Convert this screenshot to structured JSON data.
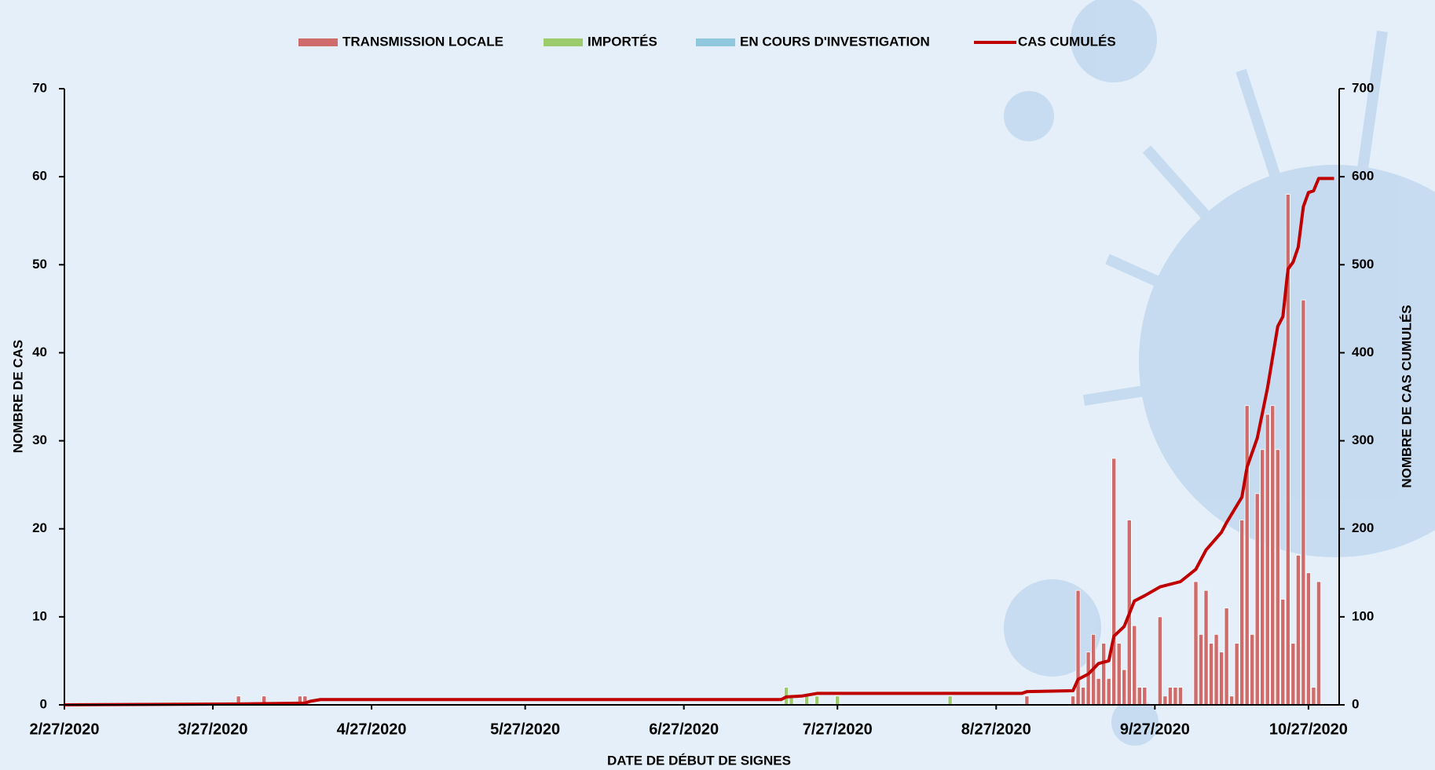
{
  "chart_data": {
    "type": "bar",
    "x_label": "DATE DE DÉBUT DE SIGNES",
    "y_label": "NOMBRE DE CAS",
    "y2_label": "NOMBRE DE CAS CUMULÉS",
    "xlim": [
      "2/27/2020",
      "11/2/2020"
    ],
    "xticks": [
      "2/27/2020",
      "3/27/2020",
      "4/27/2020",
      "5/27/2020",
      "6/27/2020",
      "7/27/2020",
      "8/27/2020",
      "9/27/2020",
      "10/27/2020"
    ],
    "ylim": [
      0,
      70
    ],
    "yticks": [
      0,
      10,
      20,
      30,
      40,
      50,
      60,
      70
    ],
    "y2lim": [
      0,
      700
    ],
    "y2ticks": [
      0,
      100,
      200,
      300,
      400,
      500,
      600,
      700
    ],
    "legend": "top",
    "series": [
      {
        "name": "TRANSMISSION LOCALE",
        "type": "bar",
        "color": "#d06b6b",
        "x": [
          "4/1/2020",
          "4/6/2020",
          "4/13/2020",
          "4/14/2020",
          "9/2/2020",
          "9/11/2020",
          "9/12/2020",
          "9/13/2020",
          "9/14/2020",
          "9/15/2020",
          "9/16/2020",
          "9/17/2020",
          "9/18/2020",
          "9/19/2020",
          "9/20/2020",
          "9/21/2020",
          "9/22/2020",
          "9/23/2020",
          "9/24/2020",
          "9/25/2020",
          "9/28/2020",
          "9/29/2020",
          "9/30/2020",
          "10/1/2020",
          "10/2/2020",
          "10/5/2020",
          "10/6/2020",
          "10/7/2020",
          "10/8/2020",
          "10/9/2020",
          "10/10/2020",
          "10/11/2020",
          "10/12/2020",
          "10/13/2020",
          "10/14/2020",
          "10/15/2020",
          "10/16/2020",
          "10/17/2020",
          "10/18/2020",
          "10/19/2020",
          "10/20/2020",
          "10/21/2020",
          "10/22/2020",
          "10/23/2020",
          "10/24/2020",
          "10/25/2020",
          "10/26/2020",
          "10/27/2020",
          "10/28/2020",
          "10/29/2020"
        ],
        "values": [
          1,
          1,
          1,
          1,
          1,
          1,
          13,
          2,
          6,
          8,
          3,
          7,
          3,
          28,
          7,
          4,
          21,
          9,
          2,
          2,
          10,
          1,
          2,
          2,
          2,
          14,
          8,
          13,
          7,
          8,
          6,
          11,
          1,
          7,
          21,
          34,
          8,
          24,
          29,
          33,
          34,
          29,
          12,
          58,
          7,
          17,
          46,
          15,
          2,
          14
        ]
      },
      {
        "name": "IMPORTÉS",
        "type": "bar",
        "color": "#9bcb6b",
        "x": [
          "7/17/2020",
          "7/18/2020",
          "7/21/2020",
          "7/23/2020",
          "7/27/2020",
          "8/18/2020"
        ],
        "values": [
          2,
          1,
          1,
          1,
          1,
          1
        ]
      },
      {
        "name": "EN COURS D'INVESTIGATION",
        "type": "bar",
        "color": "#8fc8dc",
        "x": [],
        "values": []
      },
      {
        "name": "CAS CUMULÉS",
        "type": "line",
        "axis": "y2",
        "color": "#c00000",
        "x": [
          "2/27/2020",
          "4/1/2020",
          "4/14/2020",
          "4/15/2020",
          "4/17/2020",
          "7/16/2020",
          "7/17/2020",
          "7/20/2020",
          "7/23/2020",
          "9/1/2020",
          "9/2/2020",
          "9/11/2020",
          "9/12/2020",
          "9/14/2020",
          "9/16/2020",
          "9/18/2020",
          "9/19/2020",
          "9/21/2020",
          "9/23/2020",
          "9/25/2020",
          "9/28/2020",
          "10/2/2020",
          "10/5/2020",
          "10/7/2020",
          "10/10/2020",
          "10/11/2020",
          "10/14/2020",
          "10/15/2020",
          "10/17/2020",
          "10/19/2020",
          "10/21/2020",
          "10/22/2020",
          "10/23/2020",
          "10/24/2020",
          "10/25/2020",
          "10/26/2020",
          "10/27/2020",
          "10/28/2020",
          "10/29/2020",
          "11/1/2020"
        ],
        "values": [
          0,
          1,
          2,
          4,
          6,
          6,
          9,
          10,
          13,
          13,
          15,
          16,
          29,
          35,
          47,
          50,
          78,
          89,
          118,
          124,
          134,
          140,
          154,
          176,
          196,
          207,
          236,
          270,
          303,
          360,
          430,
          441,
          495,
          503,
          520,
          566,
          582,
          584,
          598,
          598
        ]
      }
    ]
  }
}
